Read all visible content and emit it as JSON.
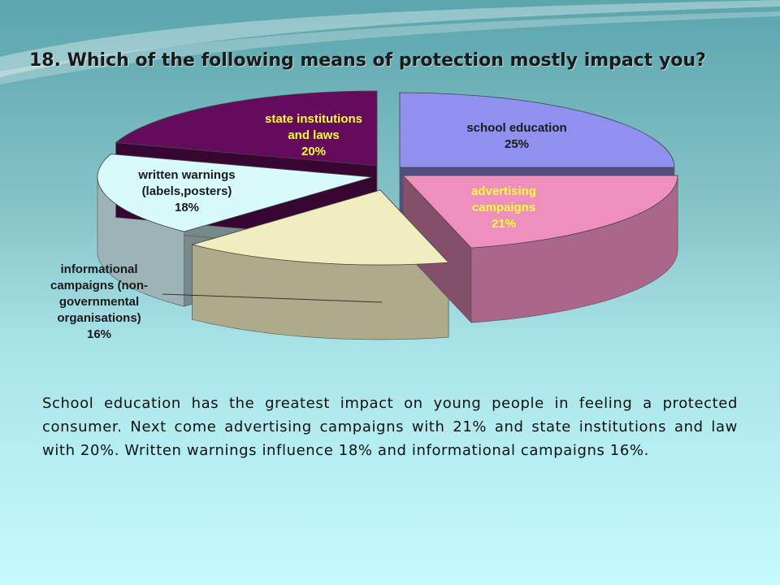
{
  "slide": {
    "title": "18. Which of the following means of protection mostly impact you?",
    "body_text": "School education has the greatest impact on young people in feeling a protected consumer. Next come advertising campaigns with 21% and state institutions and law with 20%. Written warnings influence 18% and informational campaigns 16%."
  },
  "chart_data": {
    "type": "pie",
    "style": "3d-exploded",
    "slices": [
      {
        "label_lines": [
          "school education",
          "25%"
        ],
        "value": 25,
        "color": "#8f90ef",
        "label_color": "#1a1a1a"
      },
      {
        "label_lines": [
          "advertising",
          "campaigns",
          "21%"
        ],
        "value": 21,
        "color": "#ee8fbe",
        "label_color": "#ffff33"
      },
      {
        "label_lines": [
          "informational",
          "campaigns (non-",
          "governmental",
          "organisations)",
          "16%"
        ],
        "value": 16,
        "color": "#f0eebf",
        "label_color": "#1a1a1a"
      },
      {
        "label_lines": [
          "written warnings",
          "(labels,posters)",
          "18%"
        ],
        "value": 18,
        "color": "#d9fafb",
        "label_color": "#1a1a1a"
      },
      {
        "label_lines": [
          "state institutions",
          "and laws",
          "20%"
        ],
        "value": 20,
        "color": "#650b5d",
        "label_color": "#ffff33"
      }
    ]
  }
}
